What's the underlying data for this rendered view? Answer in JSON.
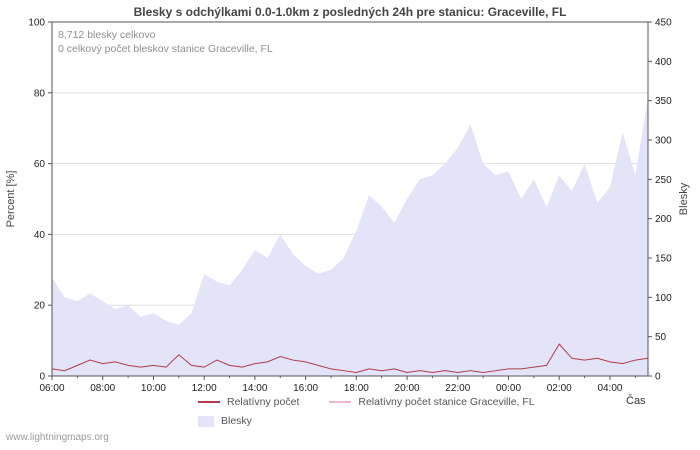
{
  "page": {
    "footer": "www.lightningmaps.org"
  },
  "chart_data": {
    "type": "area",
    "title": "Blesky s odchýlkami 0.0-1.0km z posledných 24h pre stanicu: Graceville, FL",
    "xlabel": "Čas",
    "ylabel_left": "Percent  [%]",
    "ylabel_right": "Blesky",
    "ylim_left": [
      0,
      100
    ],
    "ylim_right": [
      0,
      450
    ],
    "left_ticks": [
      0,
      20,
      40,
      60,
      80,
      100
    ],
    "right_ticks": [
      0,
      50,
      100,
      150,
      200,
      250,
      300,
      350,
      400,
      450
    ],
    "x_tick_labels": [
      "06:00",
      "08:00",
      "10:00",
      "12:00",
      "14:00",
      "16:00",
      "18:00",
      "20:00",
      "22:00",
      "00:00",
      "02:00",
      "04:00"
    ],
    "x_tick_positions": [
      0,
      4,
      8,
      12,
      16,
      20,
      24,
      28,
      32,
      36,
      40,
      44
    ],
    "x_count": 48,
    "grid": true,
    "legend_position": "bottom",
    "annotations": [
      "8,712 blesky celkovo",
      "0 celkový počet bleskov stanice Graceville, FL"
    ],
    "series": [
      {
        "name": "Blesky",
        "type": "area",
        "axis": "right",
        "color": "#e4e4f8",
        "values": [
          125,
          100,
          95,
          105,
          95,
          85,
          90,
          75,
          80,
          70,
          65,
          80,
          130,
          120,
          115,
          135,
          160,
          150,
          180,
          155,
          140,
          130,
          135,
          150,
          185,
          230,
          215,
          195,
          225,
          250,
          255,
          270,
          290,
          320,
          270,
          255,
          260,
          225,
          250,
          215,
          255,
          235,
          270,
          220,
          240,
          310,
          255,
          355
        ]
      },
      {
        "name": "Relatívny počet",
        "type": "line",
        "axis": "left",
        "color": "#b03a48",
        "values": [
          2,
          1.5,
          3,
          4.5,
          3.5,
          4,
          3,
          2.5,
          3,
          2.5,
          6,
          3,
          2.5,
          4.5,
          3,
          2.5,
          3.5,
          4,
          5.5,
          4.5,
          4,
          3,
          2,
          1.5,
          1,
          2,
          1.5,
          2,
          1,
          1.5,
          1,
          1.5,
          1,
          1.5,
          1,
          1.5,
          2,
          2,
          2.5,
          3,
          9,
          5,
          4.5,
          5,
          4,
          3.5,
          4.5,
          5
        ]
      },
      {
        "name": "Relatívny počet stanice Graceville, FL",
        "type": "line",
        "axis": "left",
        "color": "#f2b8c6",
        "values": [
          0,
          0,
          0,
          0,
          0,
          0,
          0,
          0,
          0,
          0,
          0,
          0,
          0,
          0,
          0,
          0,
          0,
          0,
          0,
          0,
          0,
          0,
          0,
          0,
          0,
          0,
          0,
          0,
          0,
          0,
          0,
          0,
          0,
          0,
          0,
          0,
          0,
          0,
          0,
          0,
          0,
          0,
          0,
          0,
          0,
          0,
          0,
          0
        ]
      }
    ]
  }
}
